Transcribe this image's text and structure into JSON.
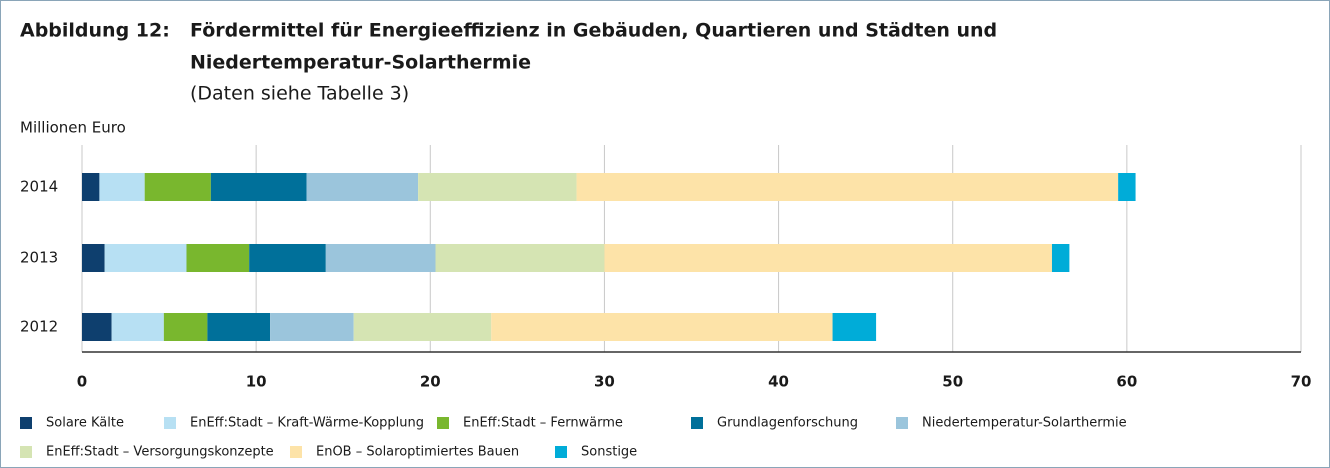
{
  "chart_data": {
    "type": "stacked-bar-horizontal",
    "title_label": "Abbildung 12:",
    "title": [
      "Fördermittel für Energieeffizienz in Gebäuden, Quartieren und Städten und",
      "Niedertemperatur-Solarthermie"
    ],
    "subtitle": "(Daten siehe Tabelle 3)",
    "y_axis_label": "Millionen Euro",
    "categories": [
      "2014",
      "2013",
      "2012"
    ],
    "series": [
      {
        "name": "Solare Kälte",
        "color": "#0e3f6e",
        "values": [
          1.0,
          1.3,
          1.7
        ]
      },
      {
        "name": "EnEff:Stadt – Kraft-Wärme-Kopplung",
        "color": "#b7e0f3",
        "values": [
          2.6,
          4.7,
          3.0
        ]
      },
      {
        "name": "EnEff:Stadt – Fernwärme",
        "color": "#79b72e",
        "values": [
          3.8,
          3.6,
          2.5
        ]
      },
      {
        "name": "Grundlagenforschung",
        "color": "#00709a",
        "values": [
          5.5,
          4.4,
          3.6
        ]
      },
      {
        "name": "Niedertemperatur-Solarthermie",
        "color": "#9bc5dc",
        "values": [
          6.4,
          6.3,
          4.8
        ]
      },
      {
        "name": "EnEff:Stadt – Versorgungskonzepte",
        "color": "#d5e4b3",
        "values": [
          9.1,
          9.7,
          7.9
        ]
      },
      {
        "name": "EnOB – Solaroptimiertes Bauen",
        "color": "#fde3a8",
        "values": [
          31.1,
          25.7,
          19.6
        ]
      },
      {
        "name": "Sonstige",
        "color": "#00acd8",
        "values": [
          1.0,
          1.0,
          2.5
        ]
      }
    ],
    "xlim": [
      0,
      70
    ],
    "xticks": [
      0,
      10,
      20,
      30,
      40,
      50,
      60,
      70
    ],
    "grid": true
  }
}
